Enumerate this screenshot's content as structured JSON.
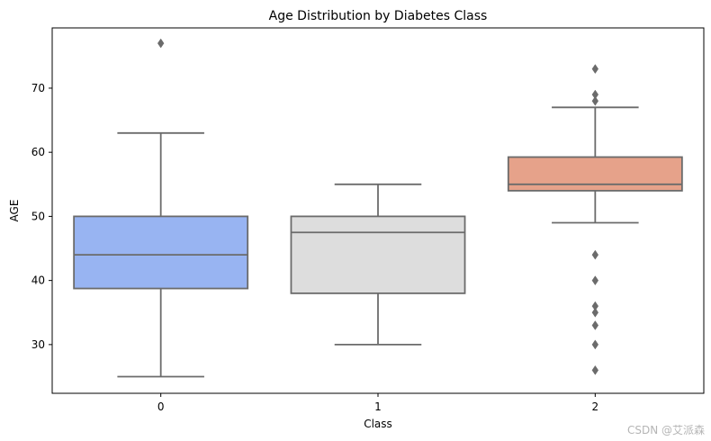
{
  "chart_data": {
    "type": "box",
    "title": "Age Distribution by Diabetes Class",
    "xlabel": "Class",
    "ylabel": "AGE",
    "ylim": [
      22.4,
      79.4
    ],
    "yticks": [
      30,
      40,
      50,
      60,
      70
    ],
    "categories": [
      "0",
      "1",
      "2"
    ],
    "boxes": [
      {
        "category": "0",
        "whisker_low": 25,
        "q1": 38.75,
        "median": 44,
        "q3": 50,
        "whisker_high": 63,
        "outliers": [
          77
        ],
        "color": "#98b4f2"
      },
      {
        "category": "1",
        "whisker_low": 30,
        "q1": 38,
        "median": 47.5,
        "q3": 50,
        "whisker_high": 55,
        "outliers": [],
        "color": "#dddddd"
      },
      {
        "category": "2",
        "whisker_low": 49,
        "q1": 54,
        "median": 55,
        "q3": 59.25,
        "whisker_high": 67,
        "outliers": [
          73,
          69,
          68,
          44,
          40,
          36,
          35,
          33,
          30,
          26
        ],
        "color": "#e6a28a"
      }
    ],
    "grid": false,
    "line_color": "#6b6b6b"
  },
  "watermark": "CSDN @艾派森"
}
